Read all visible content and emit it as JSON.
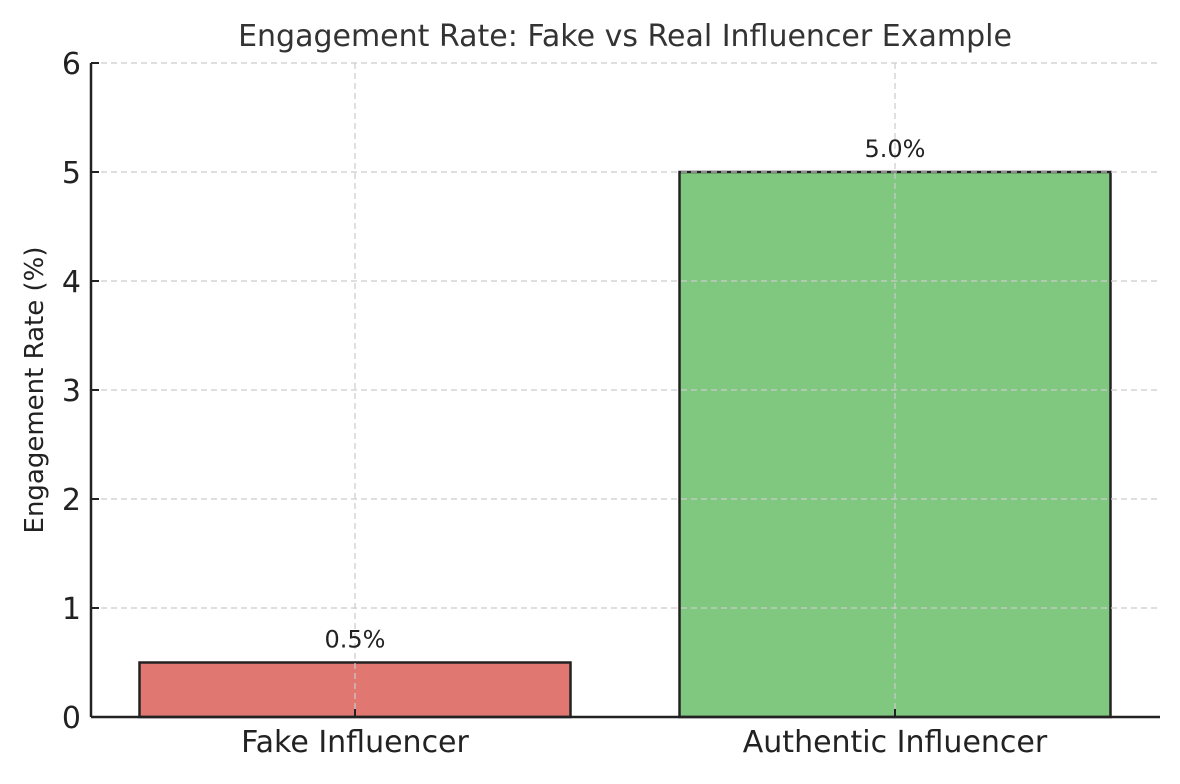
{
  "chart_data": {
    "type": "bar",
    "title": "Engagement Rate: Fake vs Real Influencer Example",
    "xlabel": "",
    "ylabel": "Engagement Rate (%)",
    "categories": [
      "Fake Influencer",
      "Authentic Influencer"
    ],
    "values": [
      0.5,
      5.0
    ],
    "data_labels": [
      "0.5%",
      "5.0%"
    ],
    "colors": [
      "#e07770",
      "#80c77f"
    ],
    "ylim": [
      0,
      6
    ],
    "yticks": [
      "0",
      "1",
      "2",
      "3",
      "4",
      "5",
      "6"
    ],
    "grid": true,
    "legend": "none"
  }
}
